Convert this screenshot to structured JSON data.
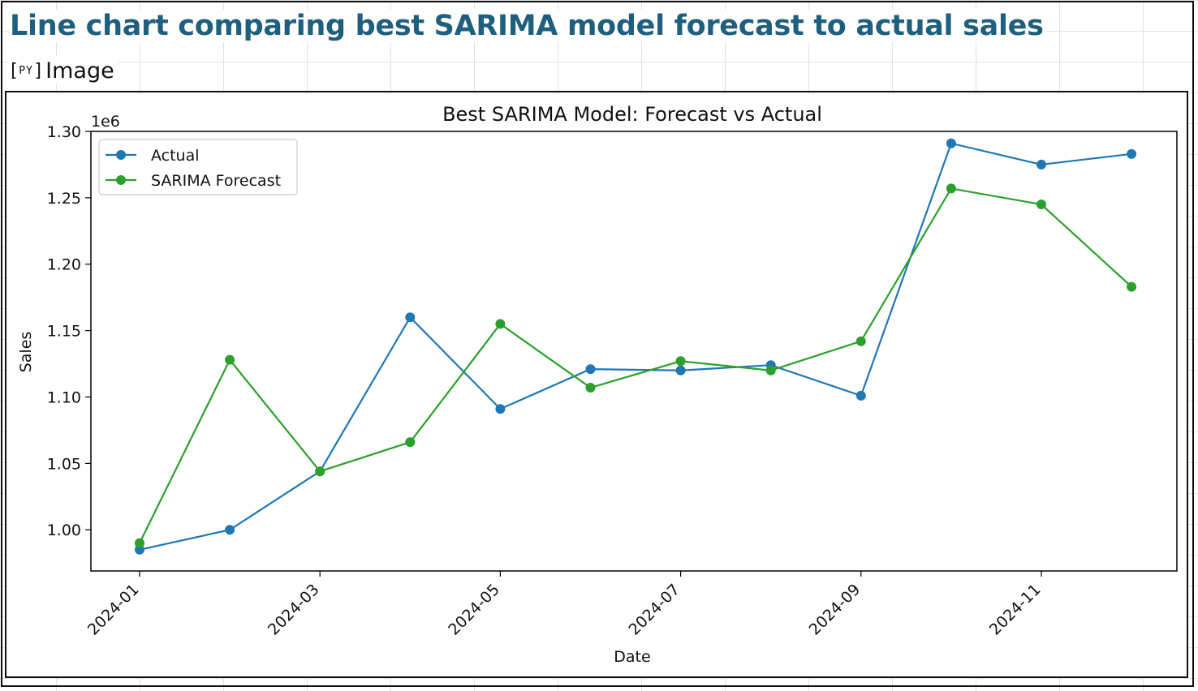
{
  "header": {
    "title": "Line chart comparing best SARIMA model forecast to actual sales",
    "badge_icon": "python-icon",
    "badge_label": "Image"
  },
  "colors": {
    "title": "#1e5f7e",
    "actual": "#1f77b4",
    "forecast": "#2ca02c"
  },
  "chart_data": {
    "type": "line",
    "title": "Best SARIMA Model: Forecast vs Actual",
    "xlabel": "Date",
    "ylabel": "Sales",
    "y_multiplier_label": "1e6",
    "categories": [
      "2024-01",
      "2024-02",
      "2024-03",
      "2024-04",
      "2024-05",
      "2024-06",
      "2024-07",
      "2024-08",
      "2024-09",
      "2024-10",
      "2024-11",
      "2024-12"
    ],
    "x_tick_labels": [
      "2024-01",
      "2024-03",
      "2024-05",
      "2024-07",
      "2024-09",
      "2024-11"
    ],
    "y_ticks": [
      1.0,
      1.05,
      1.1,
      1.15,
      1.2,
      1.25,
      1.3
    ],
    "y_tick_labels": [
      "1.00",
      "1.05",
      "1.10",
      "1.15",
      "1.20",
      "1.25",
      "1.30"
    ],
    "ylim": [
      0.969,
      1.3
    ],
    "legend_position": "top-left",
    "series": [
      {
        "name": "Actual",
        "color": "#1f77b4",
        "values": [
          0.985,
          1.0,
          1.044,
          1.16,
          1.091,
          1.121,
          1.12,
          1.124,
          1.101,
          1.291,
          1.275,
          1.283
        ]
      },
      {
        "name": "SARIMA Forecast",
        "color": "#2ca02c",
        "values": [
          0.99,
          1.128,
          1.044,
          1.066,
          1.155,
          1.107,
          1.127,
          1.12,
          1.142,
          1.257,
          1.245,
          1.183
        ]
      }
    ]
  }
}
